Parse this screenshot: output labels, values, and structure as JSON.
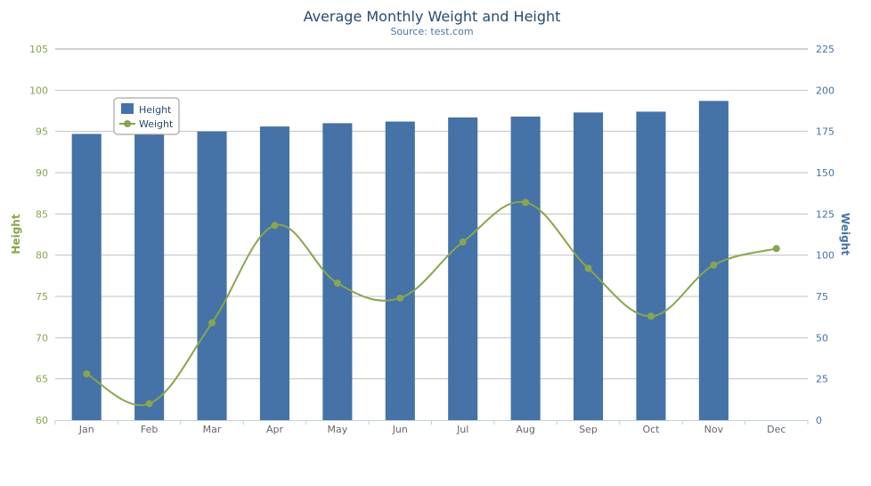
{
  "colors": {
    "height_bar": "#4572a7",
    "weight_line": "#89a54e",
    "title": "#274b6d",
    "subtitle": "#4d759e",
    "grid": "#c0c0c0",
    "axis_line": "#c0d0e0"
  },
  "chart_data": {
    "type": "bar",
    "title": "Average Monthly Weight and Height",
    "subtitle": "Source: test.com",
    "categories": [
      "Jan",
      "Feb",
      "Mar",
      "Apr",
      "May",
      "Jun",
      "Jul",
      "Aug",
      "Sep",
      "Oct",
      "Nov",
      "Dec"
    ],
    "y_left": {
      "label": "Height",
      "range": [
        60,
        105
      ],
      "ticks": [
        60,
        65,
        70,
        75,
        80,
        85,
        90,
        95,
        100,
        105
      ]
    },
    "y_right": {
      "label": "Weight",
      "range": [
        0,
        225
      ],
      "ticks": [
        0,
        25,
        50,
        75,
        100,
        125,
        150,
        175,
        200,
        225
      ]
    },
    "series": [
      {
        "name": "Height",
        "type": "bar",
        "axis": "left",
        "values": [
          94.7,
          95.5,
          95.0,
          95.6,
          96.0,
          96.2,
          96.7,
          96.8,
          97.3,
          97.4,
          98.7,
          null
        ]
      },
      {
        "name": "Weight",
        "type": "spline",
        "axis": "right",
        "values": [
          28,
          10,
          59,
          118,
          83,
          74,
          108,
          132,
          92,
          63,
          94,
          104
        ]
      }
    ],
    "legend": {
      "position": "top-left",
      "entries": [
        "Height",
        "Weight"
      ]
    },
    "grid": true
  }
}
